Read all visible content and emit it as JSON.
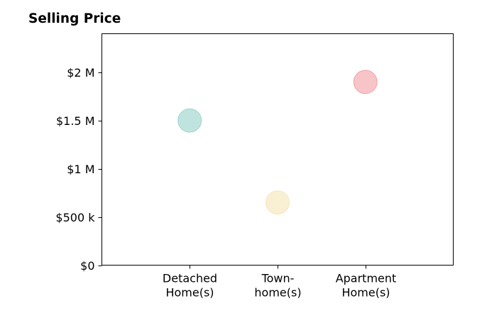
{
  "chart_data": {
    "type": "scatter",
    "title": "Selling Price",
    "xlabel": "",
    "ylabel": "",
    "categories": [
      [
        "Detached",
        "Home(s)"
      ],
      [
        "Town-",
        "home(s)"
      ],
      [
        "Apartment",
        "Home(s)"
      ]
    ],
    "values": [
      1500000,
      650000,
      1900000
    ],
    "colors": [
      "#7fc9bf",
      "#f3dfa8",
      "#f08a92"
    ],
    "ylim": [
      0,
      2400000
    ],
    "xlim": [
      -1,
      3
    ],
    "yticks": [
      {
        "value": 0,
        "label": "$0"
      },
      {
        "value": 500000,
        "label": "$500 k"
      },
      {
        "value": 1000000,
        "label": "$1 M"
      },
      {
        "value": 1500000,
        "label": "$1.5 M"
      },
      {
        "value": 2000000,
        "label": "$2 M"
      }
    ],
    "grid": false,
    "legend": "none"
  }
}
